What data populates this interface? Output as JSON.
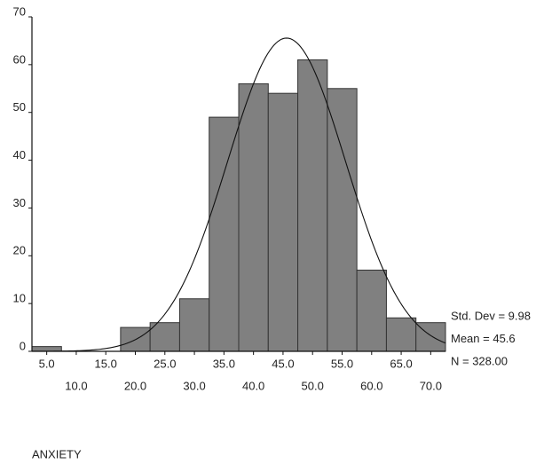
{
  "chart_data": {
    "type": "histogram",
    "xlabel": "ANXIETY",
    "bins": [
      2.5,
      7.5,
      12.5,
      17.5,
      22.5,
      27.5,
      32.5,
      37.5,
      42.5,
      47.5,
      52.5,
      57.5,
      62.5,
      67.5,
      72.5
    ],
    "values": [
      1,
      0,
      0,
      5,
      6,
      11,
      49,
      56,
      54,
      61,
      55,
      17,
      7,
      6
    ],
    "color": "#808080",
    "xlim": [
      2.5,
      72.5
    ],
    "xticks": [
      {
        "value": 5,
        "label": "5.0"
      },
      {
        "value": 10,
        "label": "10.0"
      },
      {
        "value": 15,
        "label": "15.0"
      },
      {
        "value": 20,
        "label": "20.0"
      },
      {
        "value": 25,
        "label": "25.0"
      },
      {
        "value": 30,
        "label": "30.0"
      },
      {
        "value": 35,
        "label": "35.0"
      },
      {
        "value": 40,
        "label": "40.0"
      },
      {
        "value": 45,
        "label": "45.0"
      },
      {
        "value": 50,
        "label": "50.0"
      },
      {
        "value": 55,
        "label": "55.0"
      },
      {
        "value": 60,
        "label": "60.0"
      },
      {
        "value": 65,
        "label": "65.0"
      },
      {
        "value": 70,
        "label": "70.0"
      }
    ],
    "ylim": [
      0,
      70
    ],
    "yticks": [
      0,
      10,
      20,
      30,
      40,
      50,
      60,
      70
    ],
    "fit": {
      "std_dev": {
        "value": 9.98,
        "label": "Std. Dev = 9.98"
      },
      "mean": {
        "value": 45.6,
        "label": "Mean = 45.6"
      },
      "n": {
        "value": 328,
        "label": "N = 328.00"
      }
    }
  }
}
